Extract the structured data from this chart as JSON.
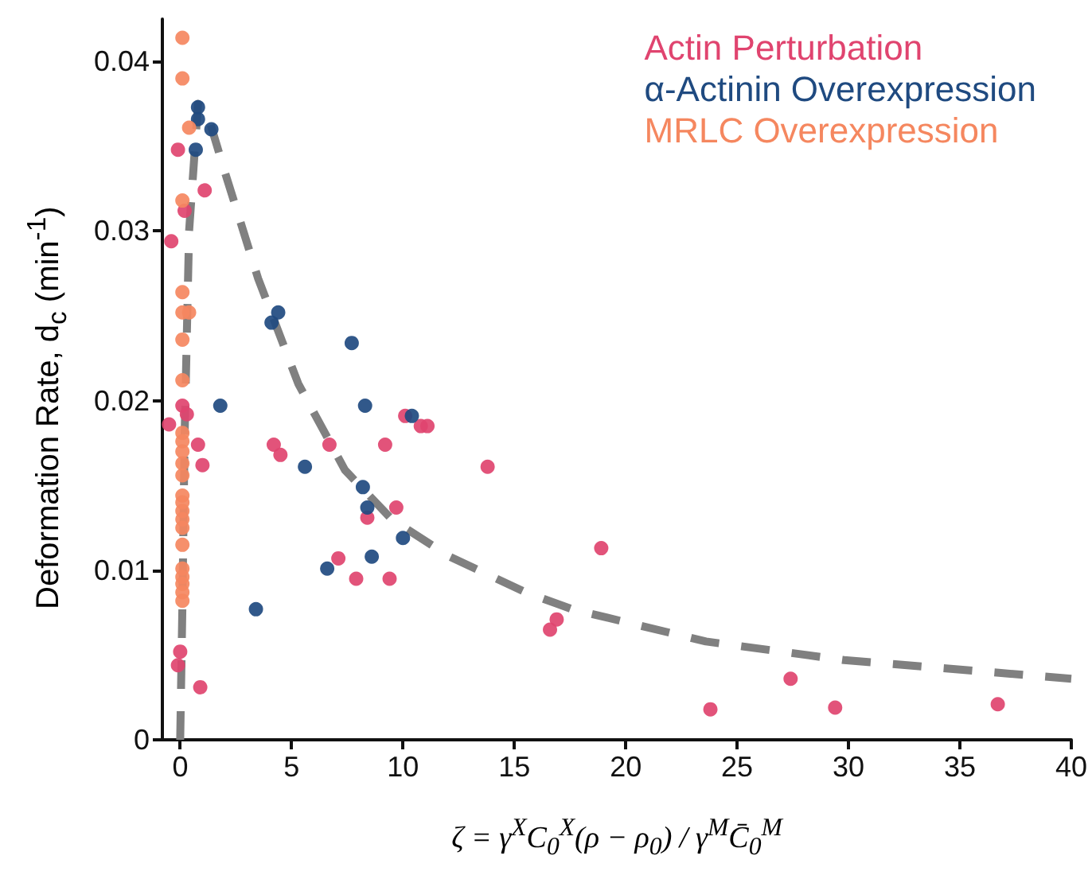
{
  "chart_data": {
    "type": "scatter",
    "xlabel": "ζ = γ$^{X}$C$_{0}$$^{X}$(ρ − ρ$_{0}$) / γ$^{M}$C̄$_{0}$$^{M}$",
    "ylabel": "Deformation Rate, d$_{c}$ (min$^{-1}$)",
    "xlim": [
      -0.8,
      40
    ],
    "xticks": [
      0,
      5,
      10,
      15,
      20,
      25,
      30,
      35,
      40
    ],
    "ylim": [
      0,
      0.0425
    ],
    "yticks": [
      0,
      0.01,
      0.02,
      0.03,
      0.04
    ],
    "grid": false,
    "legend": "top right",
    "marker": "circle",
    "series": [
      {
        "name": "Actin Perturbation",
        "color": "#e0446f",
        "x": [
          -0.1,
          1.0,
          1.1,
          0.2,
          -0.4,
          0.1,
          0.3,
          -0.5,
          0.8,
          1.0,
          4.2,
          4.5,
          0.0,
          -0.1,
          0.9,
          10.1,
          10.8,
          11.1,
          6.7,
          9.2,
          9.7,
          8.4,
          7.1,
          7.9,
          9.4,
          13.8,
          18.9,
          16.9,
          16.6,
          23.8,
          27.4,
          29.4,
          36.7
        ],
        "values": [
          0.0348,
          null,
          0.0324,
          0.0312,
          0.0294,
          0.0197,
          0.0192,
          0.0186,
          0.0174,
          0.0162,
          0.0174,
          0.0168,
          0.0052,
          0.0044,
          0.0031,
          0.0191,
          0.0185,
          0.0185,
          0.0174,
          0.0174,
          0.0137,
          0.0131,
          0.0107,
          0.0095,
          0.0095,
          0.0161,
          0.0113,
          0.0071,
          0.0065,
          0.0018,
          0.0036,
          0.0019,
          0.0021
        ]
      },
      {
        "name": "α-Actinin Overexpression",
        "color": "#1f4a80",
        "x": [
          0.8,
          0.8,
          1.4,
          0.7,
          1.8,
          3.4,
          4.1,
          4.4,
          7.7,
          8.3,
          10.4,
          5.6,
          8.2,
          8.4,
          10.0,
          8.6,
          6.6
        ],
        "values": [
          0.0373,
          0.0366,
          0.036,
          0.0348,
          0.0197,
          0.0077,
          0.0246,
          0.0252,
          0.0234,
          0.0197,
          0.0191,
          0.0161,
          0.0149,
          0.0137,
          0.0119,
          0.0108,
          0.0101
        ]
      },
      {
        "name": "MRLC Overexpression",
        "color": "#f5875f",
        "x": [
          0.1,
          0.1,
          0.4,
          0.1,
          0.1,
          0.1,
          0.4,
          0.1,
          0.1,
          0.1,
          0.1,
          0.1,
          0.1,
          0.1,
          0.1,
          0.1,
          0.1,
          0.1,
          0.1,
          0.1,
          0.1,
          0.1,
          0.1,
          0.1,
          0.1
        ],
        "values": [
          0.0414,
          0.039,
          0.0361,
          0.0318,
          0.0264,
          0.0252,
          0.0252,
          0.0236,
          0.0212,
          0.0181,
          0.0176,
          0.017,
          0.0163,
          0.0156,
          0.0144,
          0.014,
          0.0135,
          0.013,
          0.0125,
          0.0115,
          0.0101,
          0.0096,
          0.0092,
          0.0087,
          0.0082
        ]
      },
      {
        "type": "line",
        "color": "#808080",
        "line_style": "dashed",
        "marker": "none",
        "x": [
          0,
          0.1,
          0.2,
          0.4,
          0.8,
          1.2,
          2,
          3.5,
          5.3,
          7.4,
          9.5,
          12.1,
          15.5,
          17.6,
          23.6,
          29.8,
          40
        ],
        "values": [
          0,
          0.008,
          0.018,
          0.03,
          0.0375,
          0.037,
          0.0335,
          0.0272,
          0.021,
          0.0159,
          0.013,
          0.0108,
          0.0087,
          0.0077,
          0.0058,
          0.0047,
          0.0036
        ]
      }
    ]
  }
}
